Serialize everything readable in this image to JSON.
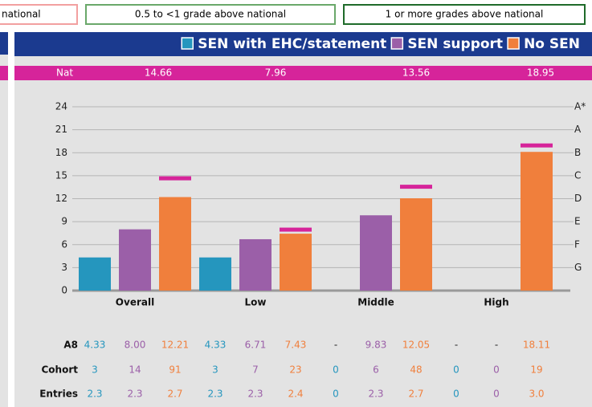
{
  "bands": [
    "national",
    "0.5 to <1 grade above national",
    "1 or more grades above national"
  ],
  "chart_data": {
    "type": "bar",
    "categories": [
      "Overall",
      "Low",
      "Middle",
      "High"
    ],
    "series": [
      {
        "name": "SEN with EHC/statement",
        "color": "#2596be",
        "values": [
          4.33,
          4.33,
          null,
          null
        ],
        "value_labels": [
          "4.33",
          "4.33",
          "-",
          "-"
        ],
        "cohort": [
          3,
          3,
          0,
          0
        ],
        "entries": [
          2.3,
          2.3,
          0,
          0
        ],
        "entries_labels": [
          "2.3",
          "2.3",
          "0",
          "0"
        ]
      },
      {
        "name": "SEN support",
        "color": "#9b5fa8",
        "values": [
          8.0,
          6.71,
          9.83,
          null
        ],
        "value_labels": [
          "8.00",
          "6.71",
          "9.83",
          "-"
        ],
        "cohort": [
          14,
          7,
          6,
          0
        ],
        "entries": [
          2.3,
          2.3,
          2.3,
          0
        ],
        "entries_labels": [
          "2.3",
          "2.3",
          "2.3",
          "0"
        ]
      },
      {
        "name": "No SEN",
        "color": "#f07f3c",
        "values": [
          12.21,
          7.43,
          12.05,
          18.11
        ],
        "value_labels": [
          "12.21",
          "7.43",
          "12.05",
          "18.11"
        ],
        "cohort": [
          91,
          23,
          48,
          19
        ],
        "entries": [
          2.7,
          2.4,
          2.7,
          3.0
        ],
        "entries_labels": [
          "2.7",
          "2.4",
          "2.7",
          "3.0"
        ]
      }
    ],
    "national": {
      "name": "Nat",
      "color": "#d6249a",
      "values": [
        14.66,
        7.96,
        13.56,
        18.95
      ]
    },
    "ylim": [
      0,
      24
    ],
    "yticks": [
      0,
      3,
      6,
      9,
      12,
      15,
      18,
      21,
      24
    ],
    "y2lim": [
      0,
      24
    ],
    "y2ticks": [
      {
        "value": 24,
        "label": "A*"
      },
      {
        "value": 21,
        "label": "A"
      },
      {
        "value": 18,
        "label": "B"
      },
      {
        "value": 15,
        "label": "C"
      },
      {
        "value": 12,
        "label": "D"
      },
      {
        "value": 9,
        "label": "E"
      },
      {
        "value": 6,
        "label": "F"
      },
      {
        "value": 3,
        "label": "G"
      }
    ],
    "grid": true,
    "row_labels": [
      "A8",
      "Cohort",
      "Entries"
    ]
  }
}
